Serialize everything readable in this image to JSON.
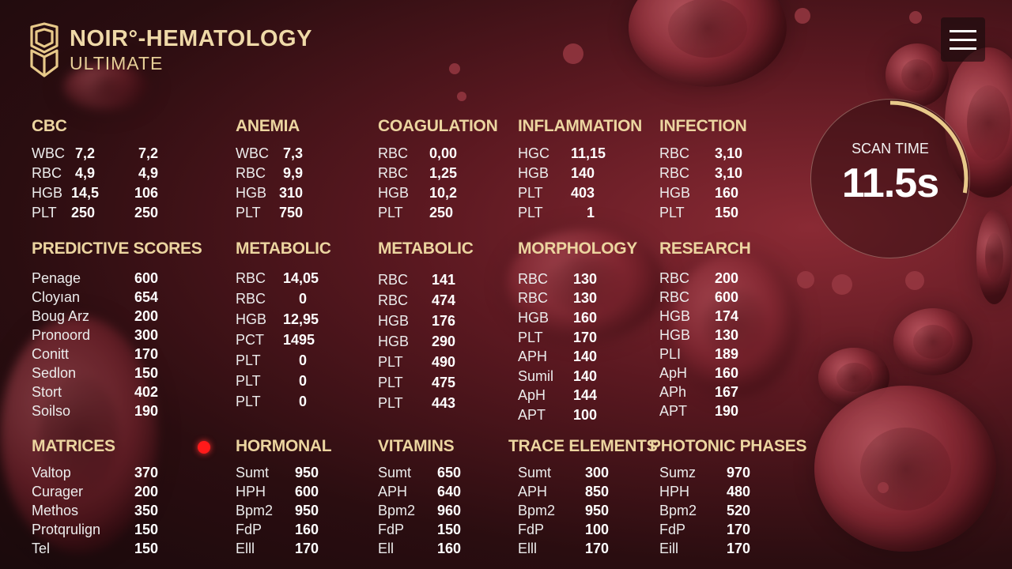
{
  "app": {
    "title": "NOIR°-HEMATOLOGY",
    "subtitle": "ULTIMATE"
  },
  "scan": {
    "label": "SCAN TIME",
    "value": "11.5s",
    "progress": 0.28
  },
  "panels": [
    {
      "title": "CBC",
      "rows": [
        [
          "WBC",
          "7,2",
          "7,2"
        ],
        [
          "RBC",
          "4,9",
          "4,9"
        ],
        [
          "HGB",
          "14,5",
          "106"
        ],
        [
          "PLT",
          "250",
          "250"
        ]
      ]
    },
    {
      "title": "ANEMIA",
      "rows": [
        [
          "WBC",
          "7,3"
        ],
        [
          "RBC",
          "9,9"
        ],
        [
          "HGB",
          "310"
        ],
        [
          "PLT",
          "750"
        ]
      ]
    },
    {
      "title": "COAGULATION",
      "rows": [
        [
          "RBC",
          "0,00"
        ],
        [
          "RBC",
          "1,25"
        ],
        [
          "HGB",
          "10,2"
        ],
        [
          "PLT",
          "250"
        ]
      ]
    },
    {
      "title": "INFLAMMATION",
      "rows": [
        [
          "HGC",
          "11,15"
        ],
        [
          "HGB",
          "140"
        ],
        [
          "PLT",
          "403"
        ],
        [
          "PLT",
          "1"
        ]
      ]
    },
    {
      "title": "INFECTION",
      "rows": [
        [
          "RBC",
          "3,10"
        ],
        [
          "RBC",
          "3,10"
        ],
        [
          "HGB",
          "160"
        ],
        [
          "PLT",
          "150"
        ]
      ]
    },
    {
      "title": "PREDICTIVE SCORES",
      "rows": [
        [
          "Penage",
          "600"
        ],
        [
          "Cloyıan",
          "654"
        ],
        [
          "Boug Arz",
          "200"
        ],
        [
          "Pronoord",
          "300"
        ],
        [
          "Conitt",
          "170"
        ],
        [
          "Sedlon",
          "150"
        ],
        [
          "Stort",
          "402"
        ],
        [
          "Soilso",
          "190"
        ]
      ]
    },
    {
      "title": "METABOLIC",
      "rows": [
        [
          "RBC",
          "14,05"
        ],
        [
          "RBC",
          "0"
        ],
        [
          "HGB",
          "12,95"
        ],
        [
          "PCT",
          "1495"
        ],
        [
          "PLT",
          "0"
        ],
        [
          "PLT",
          "0"
        ],
        [
          "PLT",
          "0"
        ]
      ]
    },
    {
      "title": "METABOLIC",
      "rows": [
        [
          "RBC",
          "141"
        ],
        [
          "RBC",
          "474"
        ],
        [
          "HGB",
          "176"
        ],
        [
          "HGB",
          "290"
        ],
        [
          "PLT",
          "490"
        ],
        [
          "PLT",
          "475"
        ],
        [
          "PLT",
          "443"
        ]
      ]
    },
    {
      "title": "MORPHOLOGY",
      "rows": [
        [
          "RBC",
          "130"
        ],
        [
          "RBC",
          "130"
        ],
        [
          "HGB",
          "160"
        ],
        [
          "PLT",
          "170"
        ],
        [
          "APH",
          "140"
        ],
        [
          "Sumil",
          "140"
        ],
        [
          "ApH",
          "144"
        ],
        [
          "APT",
          "100"
        ]
      ]
    },
    {
      "title": "RESEARCH",
      "rows": [
        [
          "RBC",
          "200"
        ],
        [
          "RBC",
          "600"
        ],
        [
          "HGB",
          "174"
        ],
        [
          "HGB",
          "130"
        ],
        [
          "PLI",
          "189"
        ],
        [
          "ApH",
          "160"
        ],
        [
          "APh",
          "167"
        ],
        [
          "APT",
          "190"
        ]
      ]
    },
    {
      "title": "MATRICES",
      "rows": [
        [
          "Valtop",
          "370"
        ],
        [
          "Curager",
          "200"
        ],
        [
          "Methos",
          "350"
        ],
        [
          "Protqrulign",
          "150"
        ],
        [
          "Tel",
          "150"
        ]
      ]
    },
    {
      "title": "HORMONAL",
      "rows": [
        [
          "Sumt",
          "950"
        ],
        [
          "HPH",
          "600"
        ],
        [
          "Bpm2",
          "950"
        ],
        [
          "FdP",
          "160"
        ],
        [
          "Elll",
          "170"
        ]
      ]
    },
    {
      "title": "VITAMINS",
      "rows": [
        [
          "Sumt",
          "650"
        ],
        [
          "APH",
          "640"
        ],
        [
          "Bpm2",
          "960"
        ],
        [
          "FdP",
          "150"
        ],
        [
          "Ell",
          "160"
        ]
      ]
    },
    {
      "title": "TRACE ELEMENTS",
      "rows": [
        [
          "Sumt",
          "300"
        ],
        [
          "APH",
          "850"
        ],
        [
          "Bpm2",
          "950"
        ],
        [
          "FdP",
          "100"
        ],
        [
          "Elll",
          "170"
        ]
      ]
    },
    {
      "title": "PHOTONIC PHASES",
      "rows": [
        [
          "Sumz",
          "970"
        ],
        [
          "HPH",
          "480"
        ],
        [
          "Bpm2",
          "520"
        ],
        [
          "FdP",
          "170"
        ],
        [
          "Eill",
          "170"
        ]
      ]
    }
  ]
}
